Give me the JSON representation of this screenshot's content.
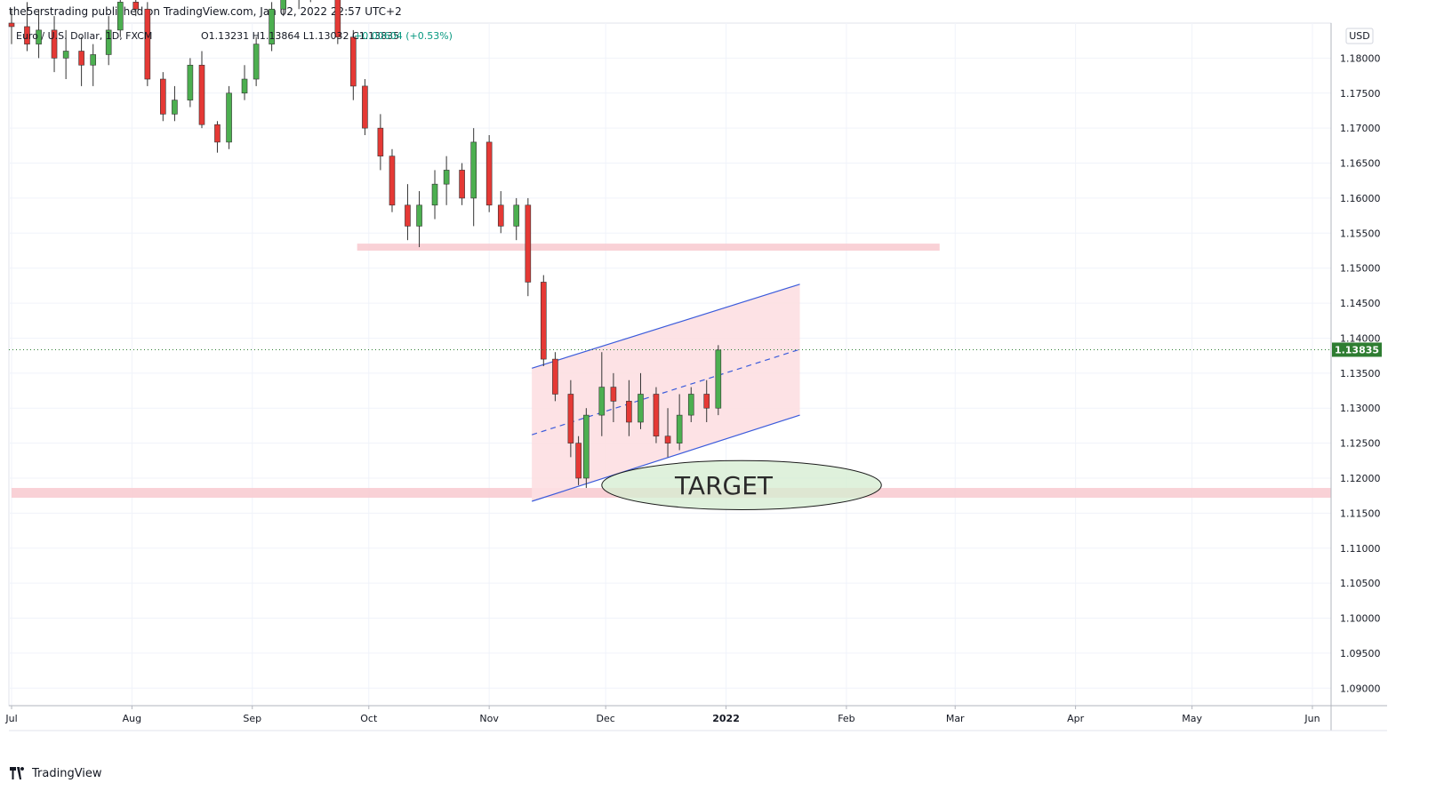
{
  "header": {
    "published_line": "the5erstrading published on TradingView.com, Jan 02, 2022 22:57 UTC+2"
  },
  "legend": {
    "symbol": "Euro / U.S. Dollar, 1D, FXCM",
    "ohlc_text": "O1.13231  H1.13864  L1.13032  C1.13835",
    "change_text": "+0.00604 (+0.53%)",
    "change_color": "#089981"
  },
  "currency_badge": "USD",
  "annotation": {
    "target_label": "TARGET"
  },
  "footer": {
    "brand": "TradingView"
  },
  "colors": {
    "up": "#4caf50",
    "down": "#e53935",
    "zone": "#f8c9cf",
    "channel_line": "#3b5bdb",
    "channel_fill": "#fde0e2",
    "target_fill": "#d4ecd0",
    "last_price_bg": "#2e7d32"
  },
  "chart_data": {
    "type": "candlestick",
    "symbol": "EURUSD",
    "timeframe": "1D",
    "x_ticks": [
      {
        "label": "Jul",
        "date": "2021-07-01"
      },
      {
        "label": "Aug",
        "date": "2021-08-01"
      },
      {
        "label": "Sep",
        "date": "2021-09-01"
      },
      {
        "label": "Oct",
        "date": "2021-10-01"
      },
      {
        "label": "Nov",
        "date": "2021-11-01"
      },
      {
        "label": "Dec",
        "date": "2021-12-01"
      },
      {
        "label": "2022",
        "date": "2022-01-01"
      },
      {
        "label": "Feb",
        "date": "2022-02-01"
      },
      {
        "label": "Mar",
        "date": "2022-03-01"
      },
      {
        "label": "Apr",
        "date": "2022-04-01"
      },
      {
        "label": "May",
        "date": "2022-05-01"
      },
      {
        "label": "Jun",
        "date": "2022-06-01"
      }
    ],
    "y_ticks": [
      "1.09000",
      "1.09500",
      "1.10000",
      "1.10500",
      "1.11000",
      "1.11500",
      "1.12000",
      "1.12500",
      "1.13000",
      "1.13500",
      "1.14000",
      "1.14500",
      "1.15000",
      "1.15500",
      "1.16000",
      "1.16500",
      "1.17000",
      "1.17500",
      "1.18000"
    ],
    "last_price": "1.13835",
    "ohlc": [
      {
        "date": "2021-07-01",
        "o": 1.185,
        "h": 1.187,
        "l": 1.182,
        "c": 1.1845
      },
      {
        "date": "2021-07-05",
        "o": 1.1845,
        "h": 1.188,
        "l": 1.181,
        "c": 1.182
      },
      {
        "date": "2021-07-08",
        "o": 1.182,
        "h": 1.187,
        "l": 1.18,
        "c": 1.184
      },
      {
        "date": "2021-07-12",
        "o": 1.184,
        "h": 1.186,
        "l": 1.178,
        "c": 1.18
      },
      {
        "date": "2021-07-15",
        "o": 1.18,
        "h": 1.184,
        "l": 1.177,
        "c": 1.181
      },
      {
        "date": "2021-07-19",
        "o": 1.181,
        "h": 1.183,
        "l": 1.176,
        "c": 1.179
      },
      {
        "date": "2021-07-22",
        "o": 1.179,
        "h": 1.182,
        "l": 1.176,
        "c": 1.1805
      },
      {
        "date": "2021-07-26",
        "o": 1.1805,
        "h": 1.186,
        "l": 1.179,
        "c": 1.184
      },
      {
        "date": "2021-07-29",
        "o": 1.184,
        "h": 1.19,
        "l": 1.183,
        "c": 1.188
      },
      {
        "date": "2021-08-02",
        "o": 1.188,
        "h": 1.19,
        "l": 1.186,
        "c": 1.187
      },
      {
        "date": "2021-08-05",
        "o": 1.187,
        "h": 1.188,
        "l": 1.176,
        "c": 1.177
      },
      {
        "date": "2021-08-09",
        "o": 1.177,
        "h": 1.178,
        "l": 1.171,
        "c": 1.172
      },
      {
        "date": "2021-08-12",
        "o": 1.172,
        "h": 1.176,
        "l": 1.171,
        "c": 1.174
      },
      {
        "date": "2021-08-16",
        "o": 1.174,
        "h": 1.18,
        "l": 1.173,
        "c": 1.179
      },
      {
        "date": "2021-08-19",
        "o": 1.179,
        "h": 1.181,
        "l": 1.17,
        "c": 1.1705
      },
      {
        "date": "2021-08-23",
        "o": 1.1705,
        "h": 1.171,
        "l": 1.1665,
        "c": 1.168
      },
      {
        "date": "2021-08-26",
        "o": 1.168,
        "h": 1.176,
        "l": 1.167,
        "c": 1.175
      },
      {
        "date": "2021-08-30",
        "o": 1.175,
        "h": 1.179,
        "l": 1.174,
        "c": 1.177
      },
      {
        "date": "2021-09-02",
        "o": 1.177,
        "h": 1.183,
        "l": 1.176,
        "c": 1.182
      },
      {
        "date": "2021-09-06",
        "o": 1.182,
        "h": 1.188,
        "l": 1.181,
        "c": 1.187
      },
      {
        "date": "2021-09-09",
        "o": 1.187,
        "h": 1.19,
        "l": 1.186,
        "c": 1.189
      },
      {
        "date": "2021-09-13",
        "o": 1.189,
        "h": 1.191,
        "l": 1.187,
        "c": 1.19
      },
      {
        "date": "2021-09-16",
        "o": 1.19,
        "h": 1.192,
        "l": 1.188,
        "c": 1.191
      },
      {
        "date": "2021-09-20",
        "o": 1.191,
        "h": 1.193,
        "l": 1.189,
        "c": 1.1895
      },
      {
        "date": "2021-09-23",
        "o": 1.1895,
        "h": 1.19,
        "l": 1.182,
        "c": 1.183
      },
      {
        "date": "2021-09-27",
        "o": 1.183,
        "h": 1.184,
        "l": 1.174,
        "c": 1.176
      },
      {
        "date": "2021-09-30",
        "o": 1.176,
        "h": 1.177,
        "l": 1.169,
        "c": 1.17
      },
      {
        "date": "2021-10-04",
        "o": 1.17,
        "h": 1.172,
        "l": 1.164,
        "c": 1.166
      },
      {
        "date": "2021-10-07",
        "o": 1.166,
        "h": 1.167,
        "l": 1.158,
        "c": 1.159
      },
      {
        "date": "2021-10-11",
        "o": 1.159,
        "h": 1.162,
        "l": 1.154,
        "c": 1.156
      },
      {
        "date": "2021-10-14",
        "o": 1.156,
        "h": 1.161,
        "l": 1.153,
        "c": 1.159
      },
      {
        "date": "2021-10-18",
        "o": 1.159,
        "h": 1.164,
        "l": 1.157,
        "c": 1.162
      },
      {
        "date": "2021-10-21",
        "o": 1.162,
        "h": 1.166,
        "l": 1.159,
        "c": 1.164
      },
      {
        "date": "2021-10-25",
        "o": 1.164,
        "h": 1.165,
        "l": 1.159,
        "c": 1.16
      },
      {
        "date": "2021-10-28",
        "o": 1.16,
        "h": 1.17,
        "l": 1.156,
        "c": 1.168
      },
      {
        "date": "2021-11-01",
        "o": 1.168,
        "h": 1.169,
        "l": 1.158,
        "c": 1.159
      },
      {
        "date": "2021-11-04",
        "o": 1.159,
        "h": 1.161,
        "l": 1.155,
        "c": 1.156
      },
      {
        "date": "2021-11-08",
        "o": 1.156,
        "h": 1.16,
        "l": 1.154,
        "c": 1.159
      },
      {
        "date": "2021-11-11",
        "o": 1.159,
        "h": 1.16,
        "l": 1.146,
        "c": 1.148
      },
      {
        "date": "2021-11-15",
        "o": 1.148,
        "h": 1.149,
        "l": 1.136,
        "c": 1.137
      },
      {
        "date": "2021-11-18",
        "o": 1.137,
        "h": 1.138,
        "l": 1.131,
        "c": 1.132
      },
      {
        "date": "2021-11-22",
        "o": 1.132,
        "h": 1.134,
        "l": 1.123,
        "c": 1.125
      },
      {
        "date": "2021-11-24",
        "o": 1.125,
        "h": 1.126,
        "l": 1.119,
        "c": 1.12
      },
      {
        "date": "2021-11-26",
        "o": 1.12,
        "h": 1.13,
        "l": 1.1186,
        "c": 1.129
      },
      {
        "date": "2021-11-30",
        "o": 1.129,
        "h": 1.138,
        "l": 1.126,
        "c": 1.133
      },
      {
        "date": "2021-12-03",
        "o": 1.133,
        "h": 1.135,
        "l": 1.128,
        "c": 1.131
      },
      {
        "date": "2021-12-07",
        "o": 1.131,
        "h": 1.134,
        "l": 1.126,
        "c": 1.128
      },
      {
        "date": "2021-12-10",
        "o": 1.128,
        "h": 1.135,
        "l": 1.127,
        "c": 1.132
      },
      {
        "date": "2021-12-14",
        "o": 1.132,
        "h": 1.133,
        "l": 1.125,
        "c": 1.126
      },
      {
        "date": "2021-12-17",
        "o": 1.126,
        "h": 1.13,
        "l": 1.123,
        "c": 1.125
      },
      {
        "date": "2021-12-20",
        "o": 1.125,
        "h": 1.132,
        "l": 1.124,
        "c": 1.129
      },
      {
        "date": "2021-12-23",
        "o": 1.129,
        "h": 1.133,
        "l": 1.128,
        "c": 1.132
      },
      {
        "date": "2021-12-27",
        "o": 1.132,
        "h": 1.134,
        "l": 1.128,
        "c": 1.13
      },
      {
        "date": "2021-12-30",
        "o": 1.13,
        "h": 1.139,
        "l": 1.129,
        "c": 1.1383
      }
    ],
    "zones": [
      {
        "from_date": "2021-09-28",
        "to_date": "2022-02-25",
        "low": 1.1525,
        "high": 1.1535
      },
      {
        "from_date": "2021-07-01",
        "to_date": "2022-06-15",
        "low": 1.1172,
        "high": 1.1186
      }
    ],
    "channel": {
      "lower": [
        {
          "date": "2021-11-12",
          "price": 1.1167
        },
        {
          "date": "2022-01-20",
          "price": 1.129
        }
      ],
      "upper": [
        {
          "date": "2021-11-12",
          "price": 1.1357
        },
        {
          "date": "2022-01-20",
          "price": 1.1477
        }
      ],
      "mid": [
        {
          "date": "2021-11-12",
          "price": 1.1262
        },
        {
          "date": "2022-01-20",
          "price": 1.1384
        }
      ]
    },
    "target_ellipse": {
      "from_date": "2021-11-30",
      "to_date": "2022-02-10",
      "low": 1.1155,
      "high": 1.1225
    },
    "ylim": [
      1.0875,
      1.185
    ],
    "grid": true
  }
}
